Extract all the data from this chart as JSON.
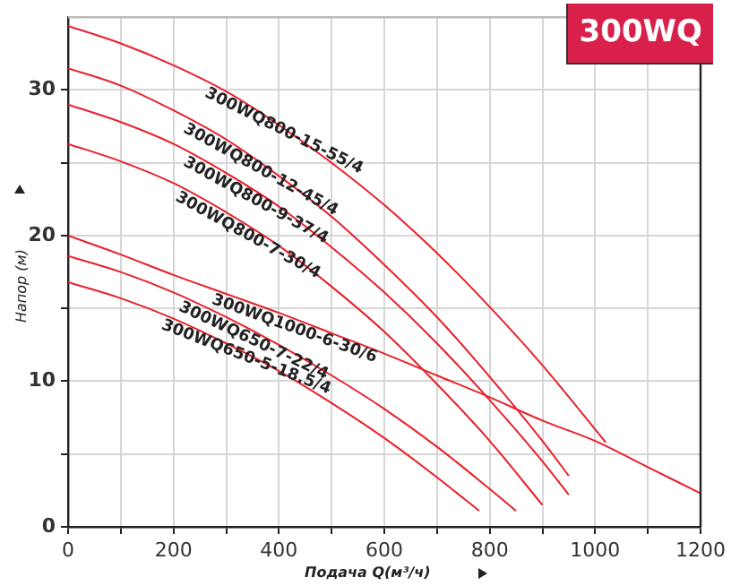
{
  "chart_data": {
    "type": "line",
    "title": "300WQ",
    "xlabel": "Подача Q(м³/ч)",
    "ylabel": "Напор (м)",
    "xlim": [
      0,
      1200
    ],
    "xticks": [
      0,
      {
        "value": 100,
        "label": null
      },
      200,
      {
        "value": 300,
        "label": null
      },
      400,
      {
        "value": 500,
        "label": null
      },
      600,
      {
        "value": 700,
        "label": null
      },
      800,
      {
        "value": 900,
        "label": null
      },
      1000,
      {
        "value": 1100,
        "label": null
      },
      1200
    ],
    "ylim": [
      0,
      35
    ],
    "yticks": [
      0,
      {
        "value": 5,
        "label": null
      },
      10,
      {
        "value": 15,
        "label": null
      },
      20,
      {
        "value": 25,
        "label": null
      },
      30
    ],
    "grid": true,
    "legend": false,
    "marker": "none",
    "line_style": "solid",
    "series": [
      {
        "name": "300WQ800-15-55/4",
        "color": "#e8202a",
        "x": [
          0,
          100,
          200,
          300,
          400,
          500,
          600,
          700,
          800,
          900,
          1020
        ],
        "values": [
          34.4,
          33.2,
          31.7,
          29.9,
          27.6,
          25.0,
          22.1,
          18.8,
          15.1,
          11.1,
          5.8
        ]
      },
      {
        "name": "300WQ800-12-45/4",
        "color": "#e8202a",
        "x": [
          0,
          100,
          200,
          300,
          400,
          500,
          600,
          700,
          800,
          900,
          950
        ],
        "values": [
          31.5,
          30.3,
          28.6,
          26.6,
          24.1,
          21.3,
          18.0,
          14.4,
          10.3,
          5.9,
          3.5
        ]
      },
      {
        "name": "300WQ800-9-37/4",
        "color": "#e8202a",
        "x": [
          0,
          100,
          200,
          300,
          400,
          500,
          600,
          700,
          800,
          900,
          950
        ],
        "values": [
          29.0,
          27.8,
          26.3,
          24.3,
          22.0,
          19.2,
          16.1,
          12.6,
          8.7,
          4.5,
          2.2
        ]
      },
      {
        "name": "300WQ800-7-30/4",
        "color": "#e8202a",
        "x": [
          0,
          100,
          200,
          300,
          400,
          500,
          600,
          700,
          800,
          900
        ],
        "values": [
          26.3,
          25.1,
          23.6,
          21.6,
          19.3,
          16.5,
          13.4,
          9.8,
          5.9,
          1.5
        ]
      },
      {
        "name": "300WQ1000-6-30/6",
        "color": "#e8202a",
        "x": [
          0,
          100,
          200,
          300,
          400,
          500,
          600,
          700,
          800,
          900,
          1000,
          1100,
          1200
        ],
        "values": [
          20.0,
          18.7,
          17.3,
          16.0,
          14.7,
          13.3,
          11.9,
          10.4,
          8.9,
          7.3,
          5.9,
          4.1,
          2.3
        ]
      },
      {
        "name": "300WQ650-7-22/4",
        "color": "#e8202a",
        "x": [
          0,
          100,
          200,
          300,
          400,
          500,
          600,
          700,
          800,
          850
        ],
        "values": [
          18.6,
          17.5,
          16.1,
          14.4,
          12.5,
          10.4,
          8.1,
          5.5,
          2.6,
          1.1
        ]
      },
      {
        "name": "300WQ650-5-18.5/4",
        "color": "#e8202a",
        "x": [
          0,
          100,
          200,
          300,
          400,
          500,
          600,
          700,
          780
        ],
        "values": [
          16.8,
          15.7,
          14.3,
          12.6,
          10.7,
          8.5,
          6.1,
          3.4,
          1.1
        ]
      }
    ]
  }
}
